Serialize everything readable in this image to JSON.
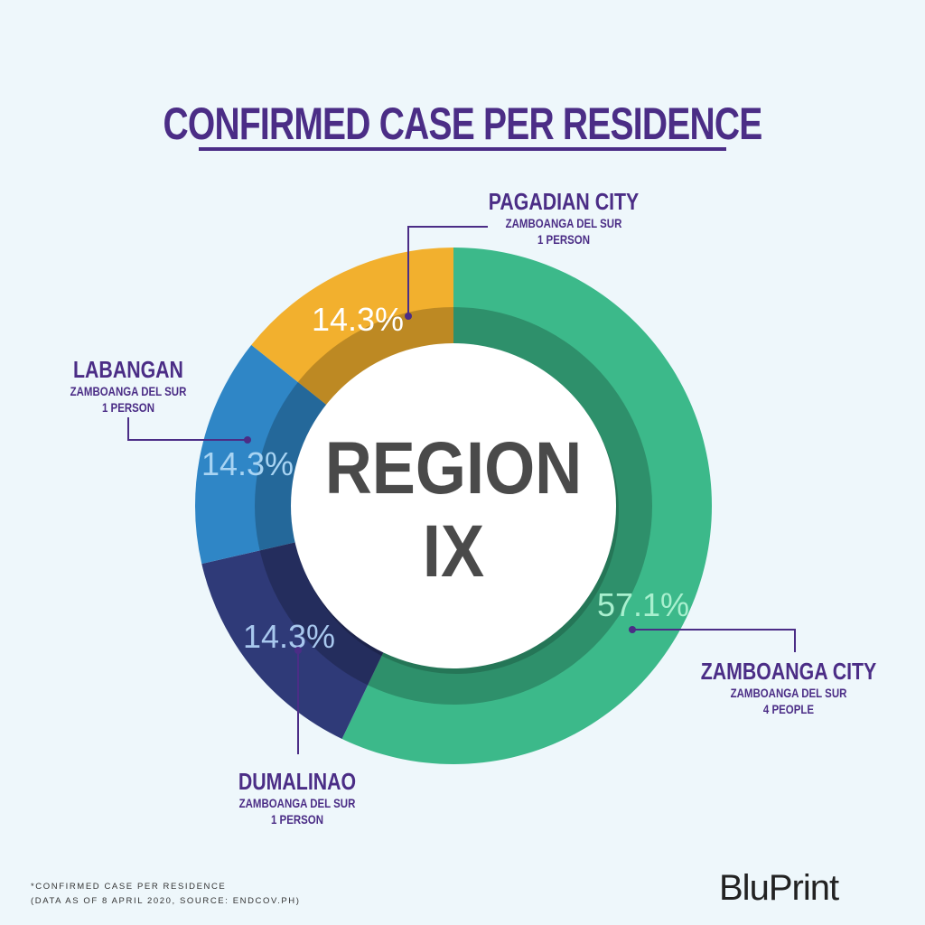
{
  "header": {
    "title": "CONFIRMED CASE PER RESIDENCE"
  },
  "chart_data": {
    "type": "pie",
    "style": "donut",
    "center_label": [
      "REGION",
      "IX"
    ],
    "slices": [
      {
        "label": "ZAMBOANGA CITY",
        "province": "ZAMBOANGA DEL SUR",
        "count_text": "4 PEOPLE",
        "value": 57.1,
        "pct_label": "57.1%",
        "color": "#3cb98a"
      },
      {
        "label": "DUMALINAO",
        "province": "ZAMBOANGA DEL SUR",
        "count_text": "1 PERSON",
        "value": 14.3,
        "pct_label": "14.3%",
        "color": "#2f3a78"
      },
      {
        "label": "LABANGAN",
        "province": "ZAMBOANGA DEL SUR",
        "count_text": "1 PERSON",
        "value": 14.3,
        "pct_label": "14.3%",
        "color": "#2f86c6"
      },
      {
        "label": "PAGADIAN CITY",
        "province": "ZAMBOANGA DEL SUR",
        "count_text": "1 PERSON",
        "value": 14.3,
        "pct_label": "14.3%",
        "color": "#f2b02e"
      }
    ],
    "colors": {
      "callout_line": "#4b2d86",
      "label_text": "#4b2d86"
    }
  },
  "footer": {
    "note": "*CONFIRMED CASE PER RESIDENCE",
    "source": "(DATA AS OF 8 APRIL 2020, SOURCE: ENDCOV.PH)",
    "brand": "BluPrint"
  }
}
